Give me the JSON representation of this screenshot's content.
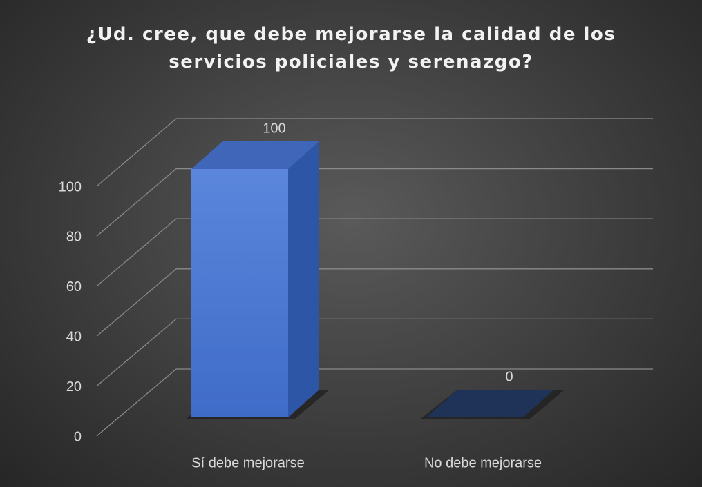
{
  "chart_data": {
    "type": "bar3d",
    "title": "¿Ud. cree, que debe mejorarse la calidad de los servicios policiales y serenazgo?",
    "categories": [
      "Sí debe mejorarse",
      "No debe mejorarse"
    ],
    "values": [
      100,
      0
    ],
    "color": "#4f7fd8",
    "ylim": [
      0,
      100
    ],
    "yticks": [
      0,
      20,
      40,
      60,
      80,
      100
    ],
    "grid": true
  }
}
